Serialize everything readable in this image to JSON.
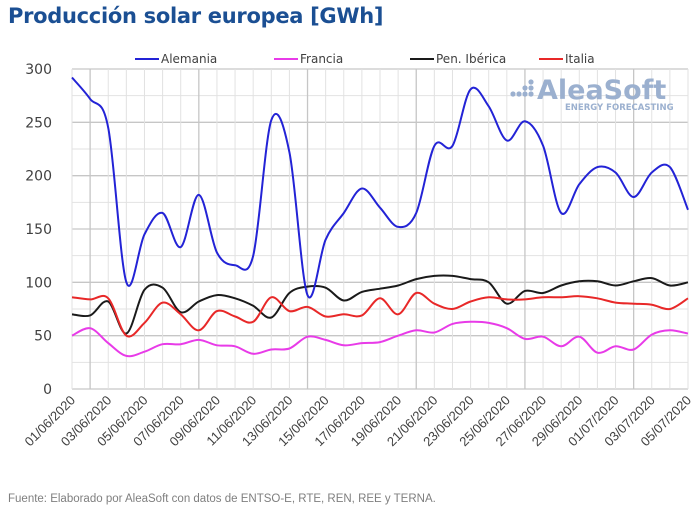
{
  "chart_data": {
    "type": "line",
    "title": "Producción solar europea [GWh]",
    "xlabel": "",
    "ylabel": "",
    "ylim": [
      0,
      300
    ],
    "yticks": [
      "0",
      "50",
      "100",
      "150",
      "200",
      "250",
      "300"
    ],
    "grid": true,
    "legend_position": "top",
    "x": [
      "01/06/2020",
      "02/06/2020",
      "03/06/2020",
      "04/06/2020",
      "05/06/2020",
      "06/06/2020",
      "07/06/2020",
      "08/06/2020",
      "09/06/2020",
      "10/06/2020",
      "11/06/2020",
      "12/06/2020",
      "13/06/2020",
      "14/06/2020",
      "15/06/2020",
      "16/06/2020",
      "17/06/2020",
      "18/06/2020",
      "19/06/2020",
      "20/06/2020",
      "21/06/2020",
      "22/06/2020",
      "23/06/2020",
      "24/06/2020",
      "25/06/2020",
      "26/06/2020",
      "27/06/2020",
      "28/06/2020",
      "29/06/2020",
      "30/06/2020",
      "01/07/2020",
      "02/07/2020",
      "03/07/2020",
      "04/07/2020",
      "05/07/2020"
    ],
    "xtick_labels": [
      "01/06/2020",
      "03/06/2020",
      "05/06/2020",
      "07/06/2020",
      "09/06/2020",
      "11/06/2020",
      "13/06/2020",
      "15/06/2020",
      "17/06/2020",
      "19/06/2020",
      "21/06/2020",
      "23/06/2020",
      "25/06/2020",
      "27/06/2020",
      "29/06/2020",
      "01/07/2020",
      "03/07/2020",
      "05/07/2020"
    ],
    "series": [
      {
        "name": "Alemania",
        "color": "#2323d6",
        "values": [
          292,
          272,
          245,
          100,
          145,
          165,
          133,
          182,
          128,
          116,
          125,
          252,
          222,
          88,
          140,
          165,
          188,
          170,
          152,
          165,
          228,
          228,
          281,
          265,
          233,
          251,
          228,
          165,
          192,
          208,
          203,
          180,
          203,
          208,
          168
        ]
      },
      {
        "name": "Francia",
        "color": "#e83be8",
        "values": [
          50,
          57,
          43,
          31,
          35,
          42,
          42,
          46,
          41,
          40,
          33,
          37,
          38,
          49,
          46,
          41,
          43,
          44,
          50,
          55,
          53,
          61,
          63,
          62,
          57,
          47,
          49,
          40,
          49,
          34,
          40,
          37,
          51,
          55,
          52
        ]
      },
      {
        "name": "Pen. Ibérica",
        "color": "#1a1a1a",
        "values": [
          70,
          69,
          82,
          52,
          93,
          95,
          72,
          82,
          88,
          85,
          78,
          67,
          90,
          96,
          95,
          83,
          91,
          94,
          97,
          103,
          106,
          106,
          103,
          100,
          80,
          92,
          90,
          97,
          101,
          101,
          97,
          101,
          104,
          97,
          100
        ]
      },
      {
        "name": "Italia",
        "color": "#e82828",
        "values": [
          86,
          84,
          85,
          50,
          62,
          81,
          70,
          55,
          73,
          68,
          63,
          86,
          73,
          77,
          68,
          70,
          69,
          85,
          70,
          90,
          80,
          75,
          82,
          86,
          84,
          84,
          86,
          86,
          87,
          85,
          81,
          80,
          79,
          75,
          85
        ]
      }
    ]
  },
  "watermark": {
    "brand": "AleaSoft",
    "tagline": "ENERGY FORECASTING"
  },
  "footer": {
    "source": "Fuente: Elaborado por AleaSoft con datos de ENTSO-E, RTE, REN, REE y TERNA."
  }
}
